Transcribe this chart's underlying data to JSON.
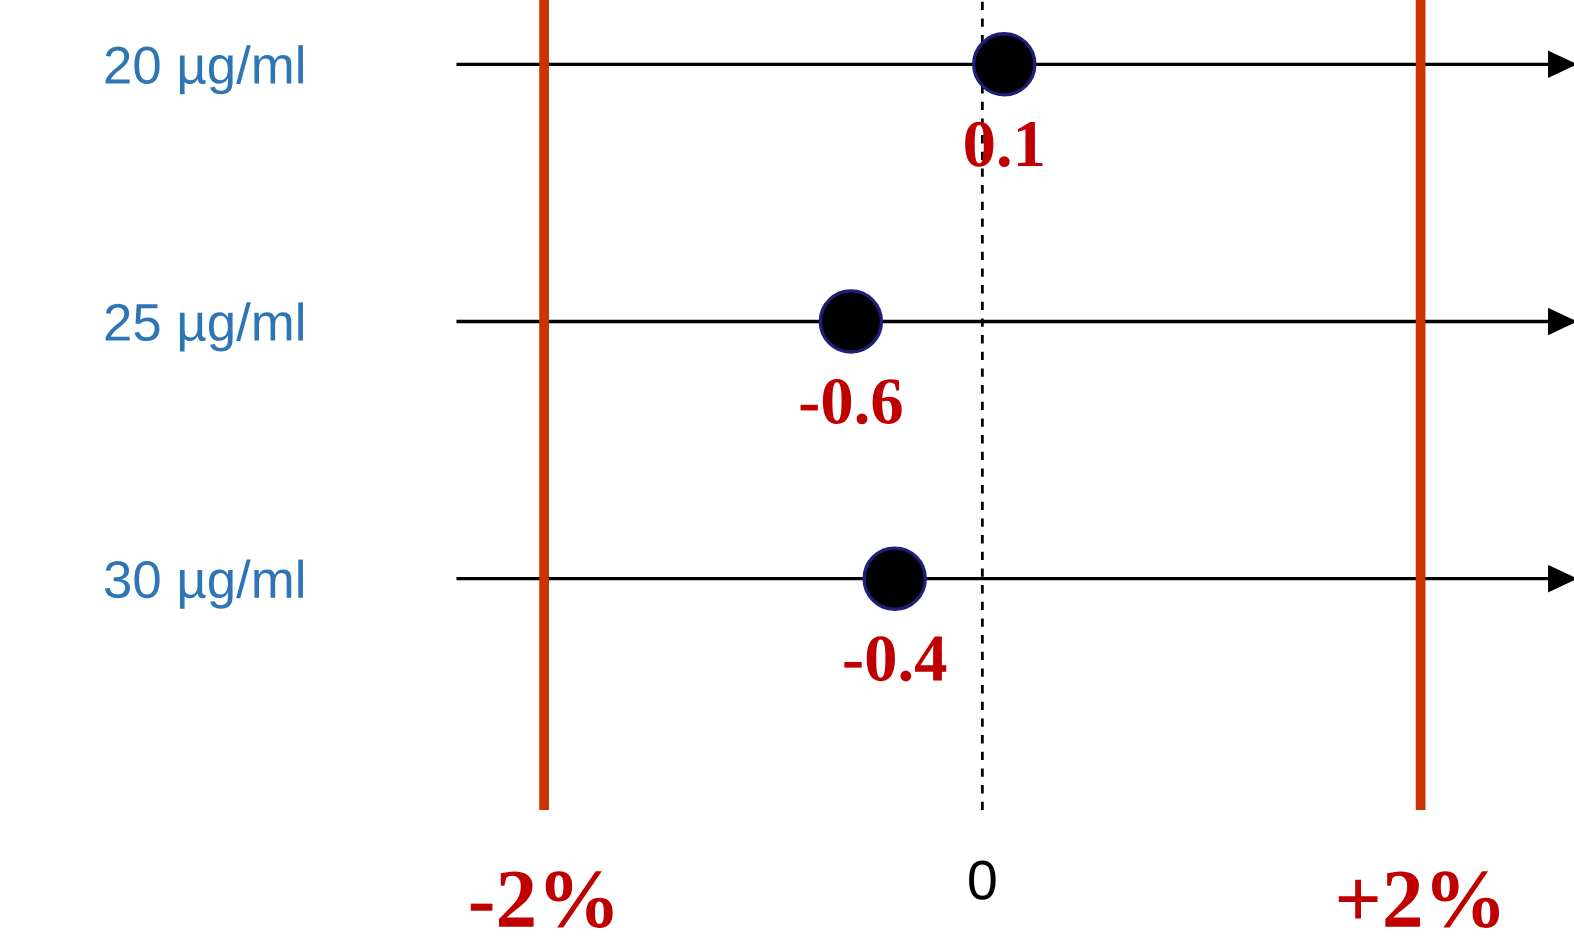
{
  "chart_data": {
    "type": "scatter",
    "orientation": "horizontal",
    "categories": [
      "20 µg/ml",
      "25 µg/ml",
      "30 µg/ml"
    ],
    "series": [
      {
        "color": "#000000",
        "values": [
          0.1,
          -0.6,
          -0.4
        ]
      }
    ],
    "xticks": [
      {
        "value": -2,
        "label": "-2%"
      },
      {
        "value": 2,
        "label": "+2%"
      }
    ],
    "xlim": [
      -2.4,
      2.7
    ],
    "data_labels": true,
    "marker": "circle",
    "grid": "y",
    "ref_lines": [
      {
        "axis": "x",
        "value": -2,
        "color": "#cc3300",
        "line_style": "solid"
      },
      {
        "axis": "x",
        "value": 0,
        "label": "0",
        "color": "#000000",
        "line_style": "dashed"
      },
      {
        "axis": "x",
        "value": 2,
        "color": "#cc3300",
        "line_style": "solid"
      }
    ]
  }
}
